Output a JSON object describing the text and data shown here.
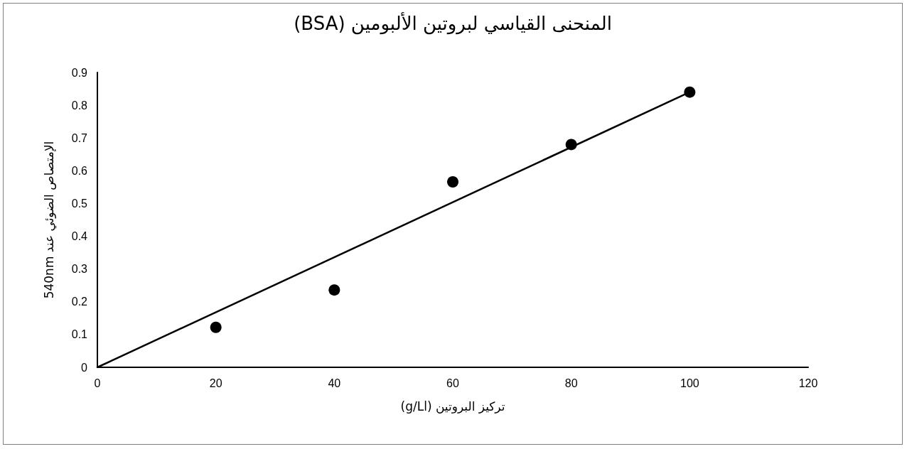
{
  "chart_data": {
    "type": "scatter",
    "title": "المنحنى القياسي لبروتين الألبومين (BSA)",
    "xlabel": "تركيز البروتين (g/Ll)",
    "ylabel": "الإمتصاص الضوئي عند 540nm",
    "x": [
      20,
      40,
      60,
      80,
      100
    ],
    "series": [
      {
        "color": "#000000",
        "marker": "circle",
        "values": [
          0.122,
          0.236,
          0.566,
          0.68,
          0.84
        ]
      },
      {
        "type": "line",
        "color": "#000000",
        "marker": "none",
        "line_style": "solid",
        "x": [
          0,
          100
        ],
        "values": [
          0,
          0.84
        ]
      }
    ],
    "xlim": [
      0,
      120
    ],
    "xticks": [
      0,
      20,
      40,
      60,
      80,
      100,
      120
    ],
    "ylim": [
      0,
      0.9
    ],
    "yticks": [
      0,
      0.1,
      0.2,
      0.3,
      0.4,
      0.5,
      0.6,
      0.7,
      0.8,
      0.9
    ],
    "grid": false
  }
}
